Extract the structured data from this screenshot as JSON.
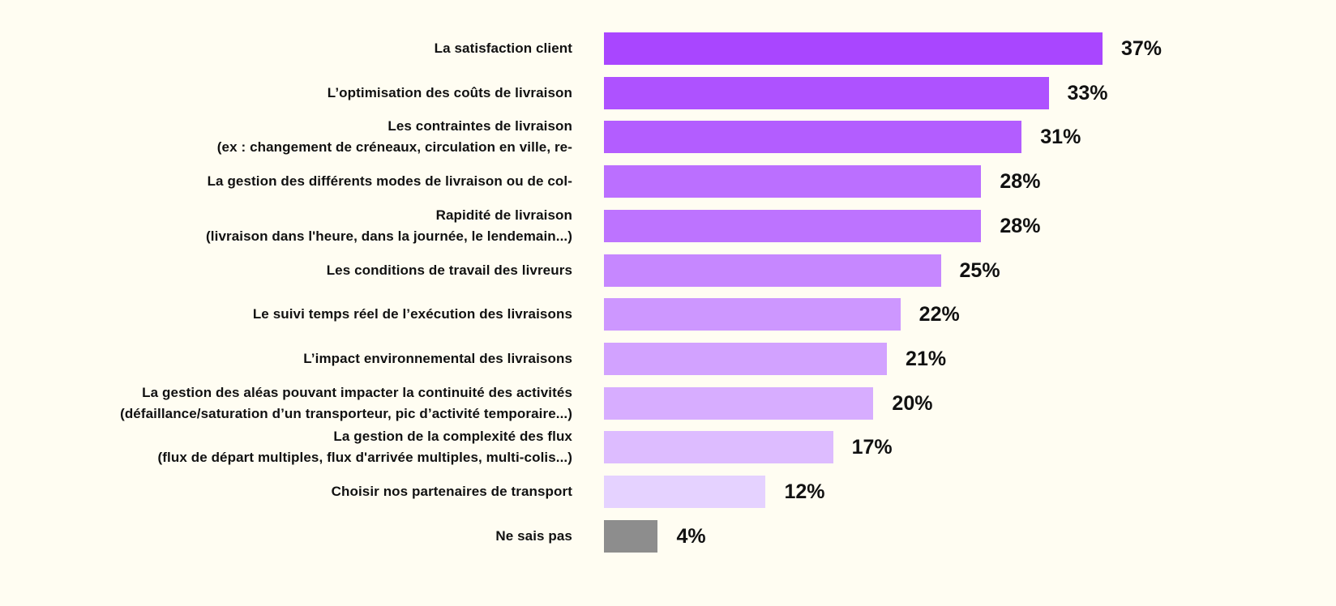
{
  "chart_data": {
    "type": "bar",
    "orientation": "horizontal",
    "title": "",
    "xlabel": "",
    "ylabel": "",
    "xlim": [
      0,
      37
    ],
    "grid": false,
    "categories": [
      [
        "La satisfaction client"
      ],
      [
        "L’optimisation des coûts de livraison"
      ],
      [
        "Les contraintes de livraison",
        "(ex : changement de créneaux, circulation en ville, re-"
      ],
      [
        "La gestion des différents modes de livraison ou de col-"
      ],
      [
        "Rapidité de livraison",
        "(livraison dans l'heure, dans la journée, le lendemain...)"
      ],
      [
        "Les conditions de travail des livreurs"
      ],
      [
        "Le suivi temps réel de l’exécution des livraisons"
      ],
      [
        "L’impact environnemental des livraisons"
      ],
      [
        "La gestion des aléas pouvant impacter la continuité des activités",
        "(défaillance/saturation d’un transporteur, pic d’activité temporaire...)"
      ],
      [
        "La gestion de la complexité des flux",
        "(flux de départ multiples, flux d'arrivée multiples, multi-colis...)"
      ],
      [
        "Choisir nos partenaires de transport"
      ],
      [
        "Ne sais pas"
      ]
    ],
    "values": [
      37,
      33,
      31,
      28,
      28,
      25,
      22,
      21,
      20,
      17,
      12,
      4
    ],
    "value_labels": [
      "37%",
      "33%",
      "31%",
      "28%",
      "28%",
      "25%",
      "22%",
      "21%",
      "20%",
      "17%",
      "12%",
      "4%"
    ],
    "colors": [
      "#a946ff",
      "#ae52ff",
      "#b35dff",
      "#bb6fff",
      "#bd73ff",
      "#c687ff",
      "#cd97ff",
      "#d2a2ff",
      "#d7adff",
      "#ddbcff",
      "#e5d2ff",
      "#8d8d8d"
    ]
  }
}
